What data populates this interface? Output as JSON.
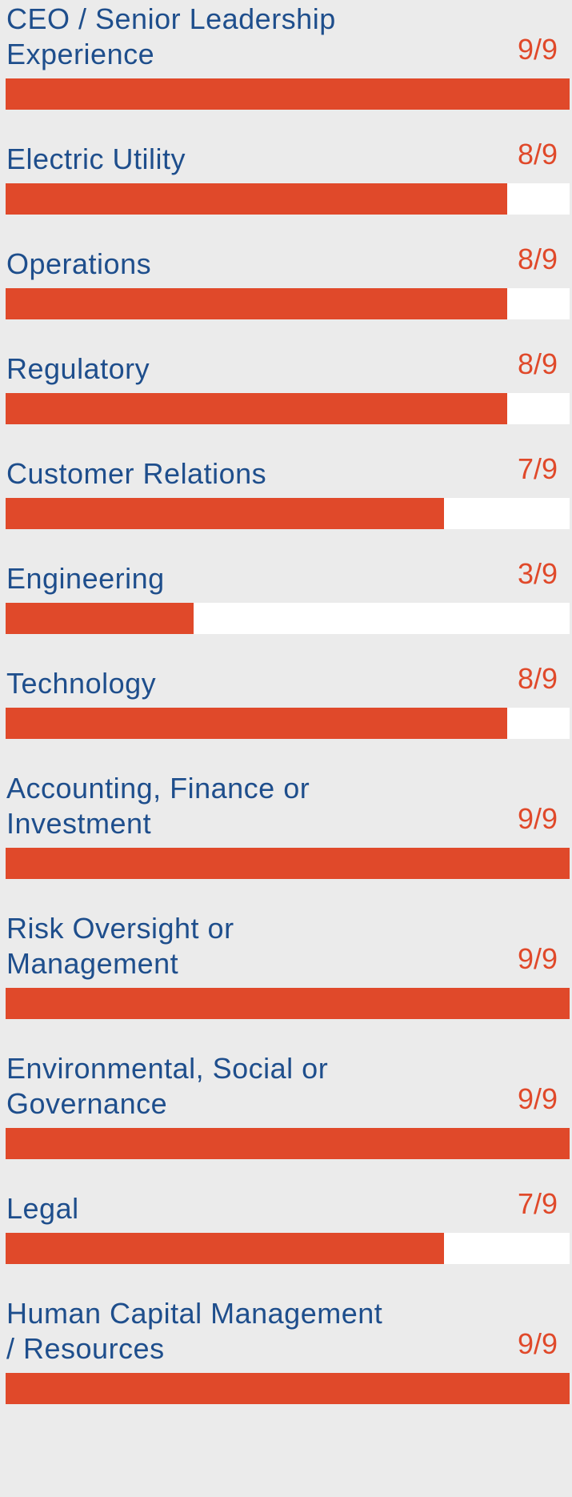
{
  "chart_data": {
    "type": "bar",
    "orientation": "horizontal",
    "max": 9,
    "colors": {
      "fill": "#e0492a",
      "track": "#ffffff",
      "label": "#1e4e8c",
      "count": "#e0492a",
      "background": "#ebebeb"
    },
    "rows": [
      {
        "label": "CEO / Senior Leadership\nExperience",
        "count_text": "9/9",
        "value": 9
      },
      {
        "label": "Electric Utility",
        "count_text": "8/9",
        "value": 8
      },
      {
        "label": "Operations",
        "count_text": "8/9",
        "value": 8
      },
      {
        "label": "Regulatory",
        "count_text": "8/9",
        "value": 8
      },
      {
        "label": "Customer Relations",
        "count_text": "7/9",
        "value": 7
      },
      {
        "label": "Engineering",
        "count_text": "3/9",
        "value": 3
      },
      {
        "label": "Technology",
        "count_text": "8/9",
        "value": 8
      },
      {
        "label": "Accounting, Finance or\nInvestment",
        "count_text": "9/9",
        "value": 9
      },
      {
        "label": "Risk Oversight or\nManagement",
        "count_text": "9/9",
        "value": 9
      },
      {
        "label": "Environmental, Social or\nGovernance",
        "count_text": "9/9",
        "value": 9
      },
      {
        "label": "Legal",
        "count_text": "7/9",
        "value": 7
      },
      {
        "label": "Human Capital Management\n/ Resources",
        "count_text": "9/9",
        "value": 9
      }
    ]
  }
}
